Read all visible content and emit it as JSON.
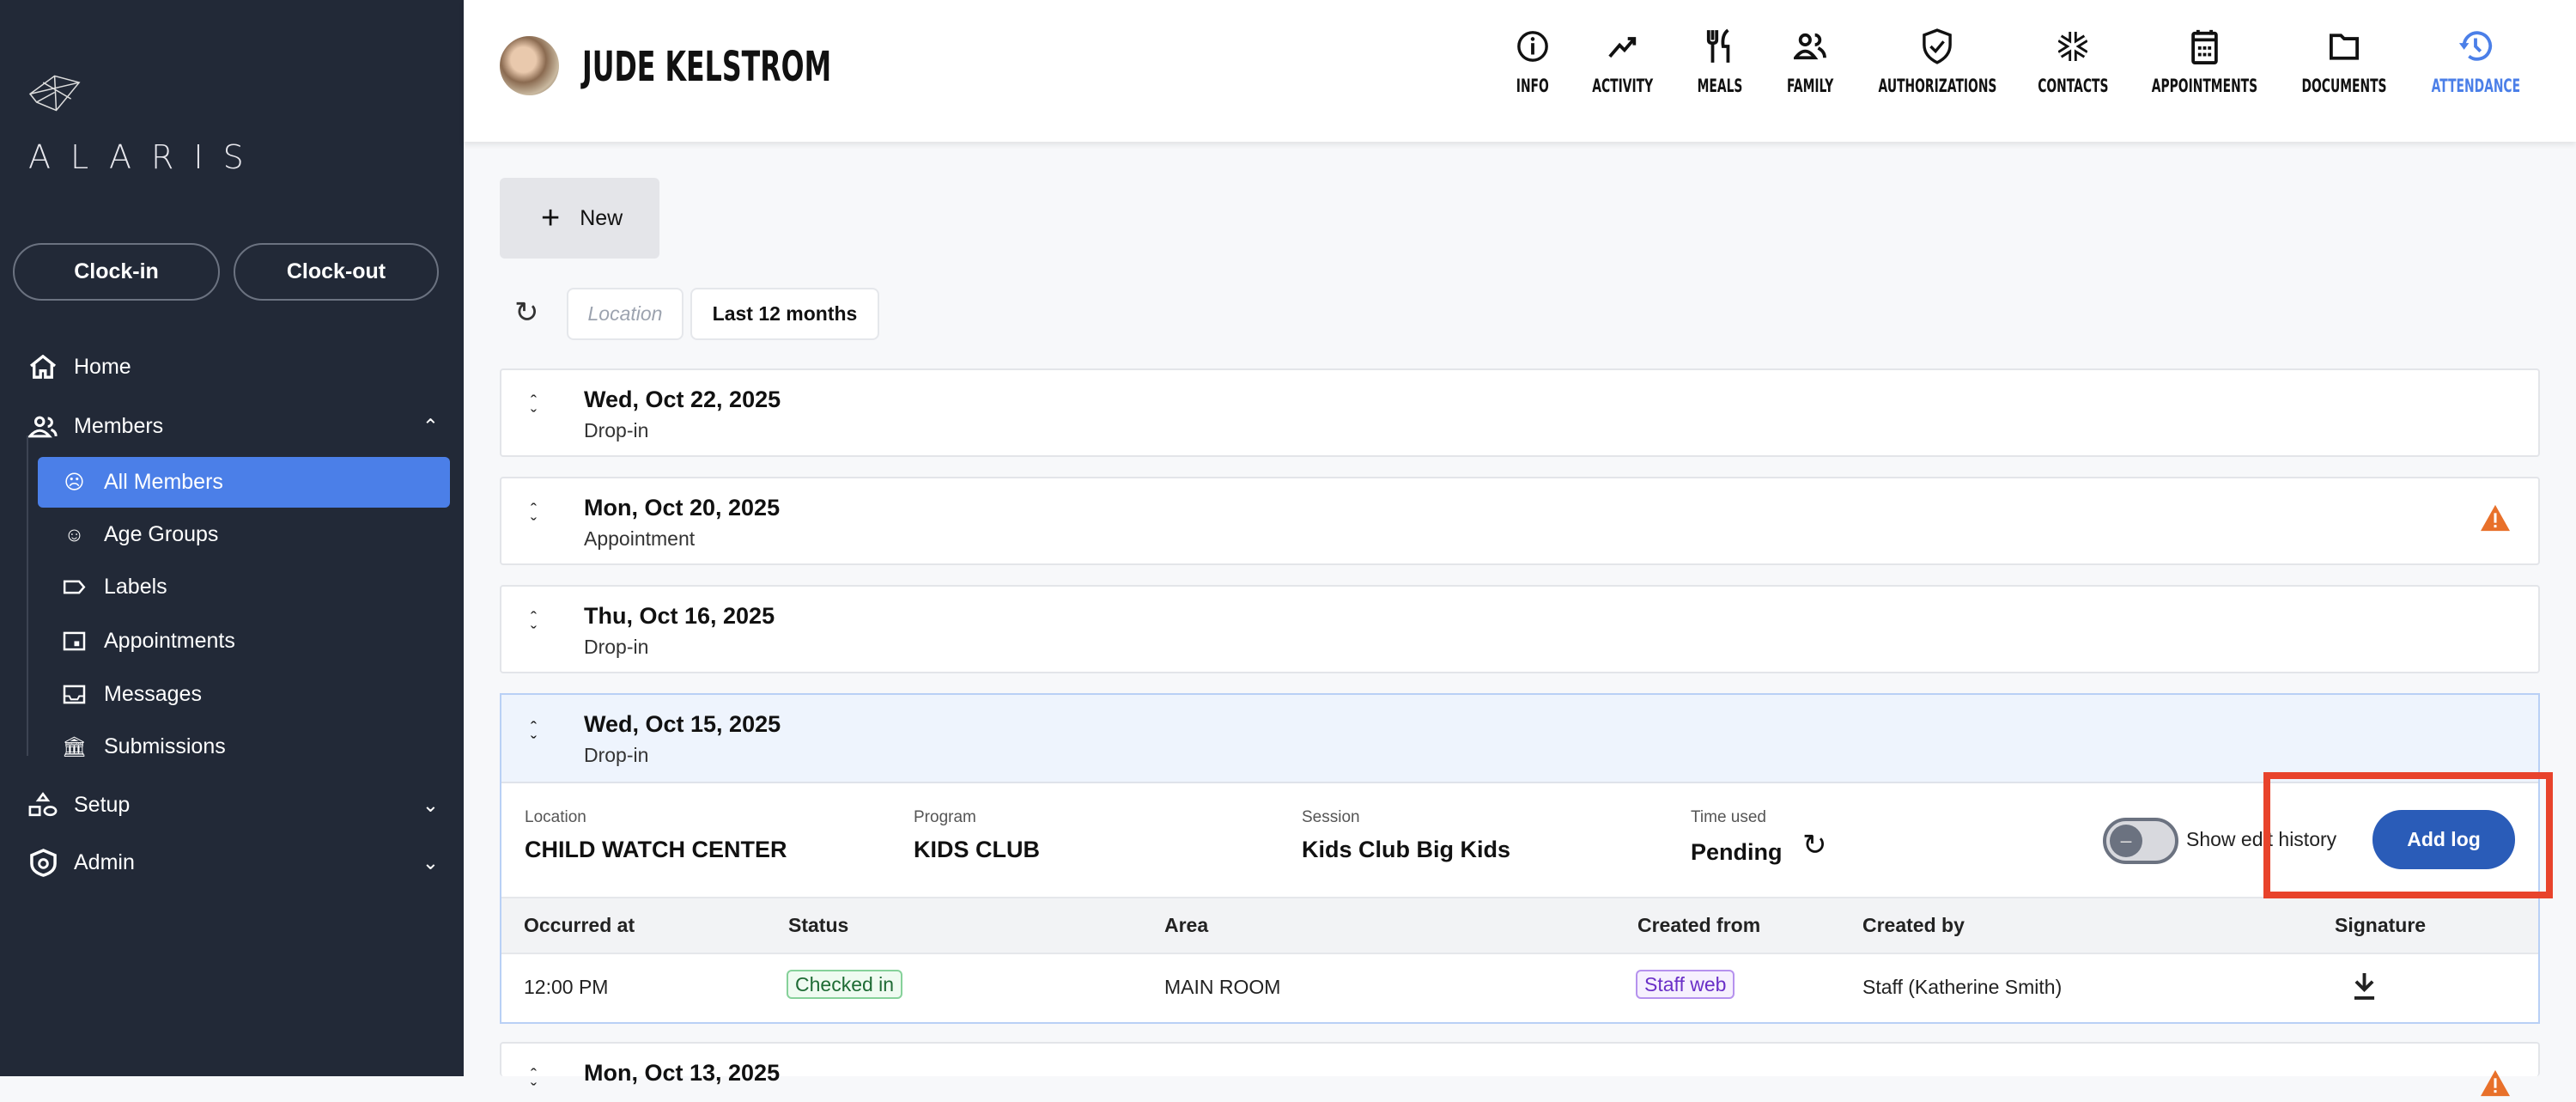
{
  "sidebar": {
    "brand": "ALARIS",
    "clock_in": "Clock-in",
    "clock_out": "Clock-out",
    "nav": {
      "home": "Home",
      "members": "Members",
      "setup": "Setup",
      "admin": "Admin"
    },
    "members_sub": [
      "All Members",
      "Age Groups",
      "Labels",
      "Appointments",
      "Messages",
      "Submissions"
    ],
    "active_color": "#4b7fe8"
  },
  "header": {
    "name": "JUDE KELSTROM",
    "tabs": [
      {
        "label": "INFO",
        "icon": "info-icon"
      },
      {
        "label": "ACTIVITY",
        "icon": "trending-up-icon"
      },
      {
        "label": "MEALS",
        "icon": "utensils-icon"
      },
      {
        "label": "FAMILY",
        "icon": "family-icon"
      },
      {
        "label": "AUTHORIZATIONS",
        "icon": "shield-check-icon"
      },
      {
        "label": "CONTACTS",
        "icon": "medical-star-icon"
      },
      {
        "label": "APPOINTMENTS",
        "icon": "calendar-icon"
      },
      {
        "label": "DOCUMENTS",
        "icon": "folder-icon"
      },
      {
        "label": "ATTENDANCE",
        "icon": "history-icon",
        "active": true
      }
    ]
  },
  "toolbar": {
    "new_label": "New",
    "location_placeholder": "Location",
    "range": "Last 12 months"
  },
  "entries": [
    {
      "date": "Wed, Oct 22, 2025",
      "type": "Drop-in",
      "warning": false
    },
    {
      "date": "Mon, Oct 20, 2025",
      "type": "Appointment",
      "warning": true
    },
    {
      "date": "Thu, Oct 16, 2025",
      "type": "Drop-in",
      "warning": false
    },
    {
      "date": "Wed, Oct 15, 2025",
      "type": "Drop-in",
      "expanded": true
    },
    {
      "date": "Mon, Oct 13, 2025",
      "warning": true
    }
  ],
  "detail": {
    "location_label": "Location",
    "location": "CHILD WATCH CENTER",
    "program_label": "Program",
    "program": "KIDS CLUB",
    "session_label": "Session",
    "session": "Kids Club Big Kids",
    "time_label": "Time used",
    "time": "Pending",
    "show_edit_history": "Show edit history",
    "show_edit_history_on": false,
    "add_log": "Add log",
    "columns": [
      "Occurred at",
      "Status",
      "Area",
      "Created from",
      "Created by",
      "Signature"
    ],
    "rows": [
      {
        "occurred": "12:00 PM",
        "status": "Checked in",
        "area": "MAIN ROOM",
        "created_from": "Staff web",
        "created_by": "Staff (Katherine Smith)",
        "signature_icon": "download-icon"
      }
    ]
  },
  "colors": {
    "primary": "#2a5cb8",
    "warning": "#e8702a",
    "highlight_box": "#e8432b"
  }
}
